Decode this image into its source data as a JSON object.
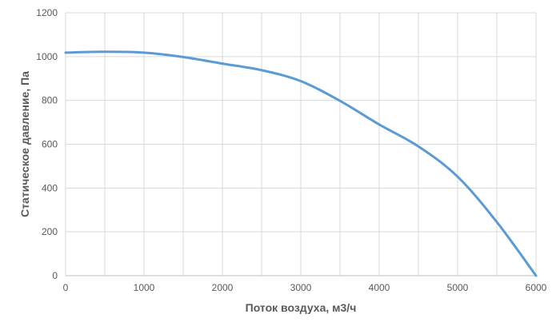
{
  "chart_data": {
    "type": "line",
    "title": "",
    "xlabel": "Поток воздуха, м3/ч",
    "ylabel": "Статическое давление, Па",
    "xlim": [
      0,
      6000
    ],
    "ylim": [
      0,
      1200
    ],
    "x_ticks": [
      0,
      1000,
      2000,
      3000,
      4000,
      5000,
      6000
    ],
    "y_ticks": [
      0,
      200,
      400,
      600,
      800,
      1000,
      1200
    ],
    "x_minor_gridlines_step": 500,
    "grid": true,
    "legend": "none",
    "series": [
      {
        "color": "#5b9bd5",
        "x": [
          0,
          500,
          1000,
          1500,
          2000,
          2500,
          3000,
          3500,
          4000,
          4500,
          5000,
          5500,
          6000
        ],
        "y": [
          1018,
          1022,
          1018,
          998,
          968,
          938,
          888,
          798,
          690,
          590,
          452,
          245,
          0
        ]
      }
    ]
  }
}
